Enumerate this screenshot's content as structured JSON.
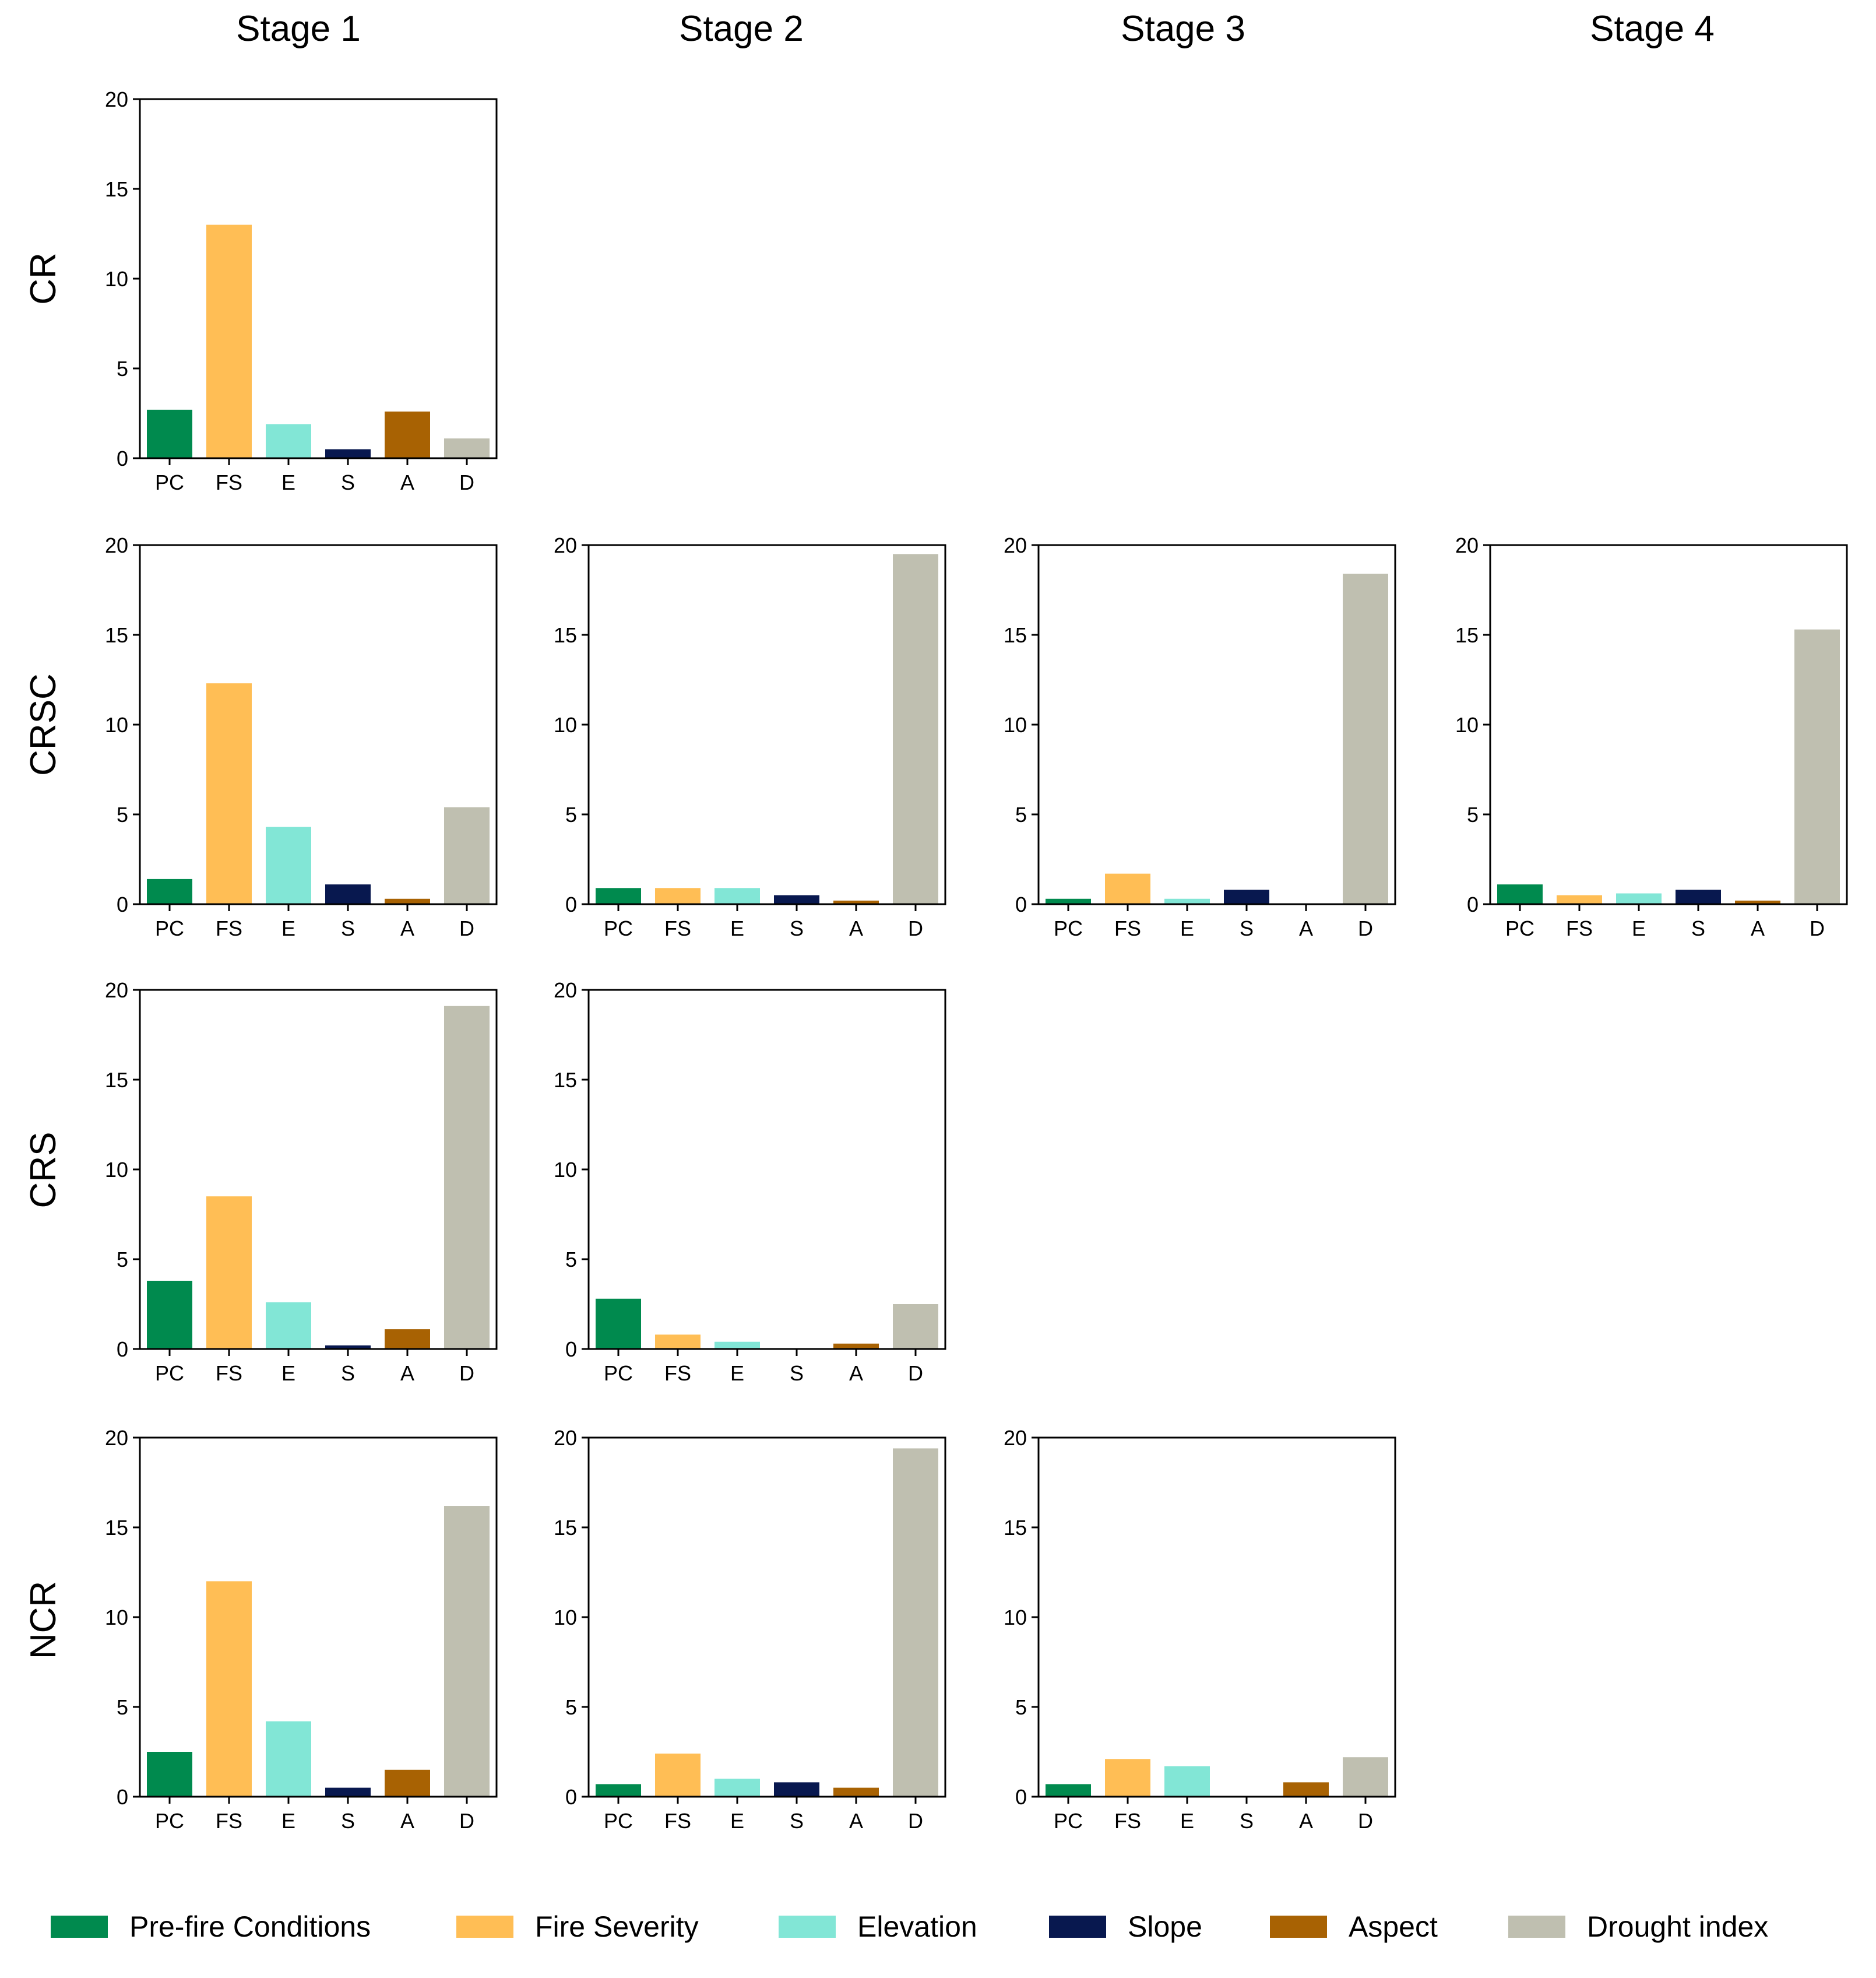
{
  "stages": [
    "Stage 1",
    "Stage 2",
    "Stage 3",
    "Stage 4"
  ],
  "rows": [
    "CR",
    "CRSC",
    "CRS",
    "NCR"
  ],
  "legend": [
    {
      "code": "PC",
      "label": "Pre-fire Conditions",
      "color": "#008a4e"
    },
    {
      "code": "FS",
      "label": "Fire Severity",
      "color": "#ffbe55"
    },
    {
      "code": "E",
      "label": "Elevation",
      "color": "#82e6d6"
    },
    {
      "code": "S",
      "label": "Slope",
      "color": "#08184f"
    },
    {
      "code": "A",
      "label": "Aspect",
      "color": "#a86203"
    },
    {
      "code": "D",
      "label": "Drought index",
      "color": "#bfbfb0"
    }
  ],
  "chart_data": {
    "type": "bar",
    "categories": [
      "PC",
      "FS",
      "E",
      "S",
      "A",
      "D"
    ],
    "ylim": [
      0,
      20
    ],
    "yticks": [
      0,
      5,
      10,
      15,
      20
    ],
    "panels": [
      {
        "row": "CR",
        "stage": "Stage 1",
        "values": [
          2.7,
          13.0,
          1.9,
          0.5,
          2.6,
          1.1
        ]
      },
      {
        "row": "CRSC",
        "stage": "Stage 1",
        "values": [
          1.4,
          12.3,
          4.3,
          1.1,
          0.3,
          5.4
        ]
      },
      {
        "row": "CRSC",
        "stage": "Stage 2",
        "values": [
          0.9,
          0.9,
          0.9,
          0.5,
          0.2,
          19.5
        ]
      },
      {
        "row": "CRSC",
        "stage": "Stage 3",
        "values": [
          0.3,
          1.7,
          0.3,
          0.8,
          0.0,
          18.4
        ]
      },
      {
        "row": "CRSC",
        "stage": "Stage 4",
        "values": [
          1.1,
          0.5,
          0.6,
          0.8,
          0.2,
          15.3
        ]
      },
      {
        "row": "CRS",
        "stage": "Stage 1",
        "values": [
          3.8,
          8.5,
          2.6,
          0.2,
          1.1,
          19.1
        ]
      },
      {
        "row": "CRS",
        "stage": "Stage 2",
        "values": [
          2.8,
          0.8,
          0.4,
          0.0,
          0.3,
          2.5
        ]
      },
      {
        "row": "NCR",
        "stage": "Stage 1",
        "values": [
          2.5,
          12.0,
          4.2,
          0.5,
          1.5,
          16.2
        ]
      },
      {
        "row": "NCR",
        "stage": "Stage 2",
        "values": [
          0.7,
          2.4,
          1.0,
          0.8,
          0.5,
          19.4
        ]
      },
      {
        "row": "NCR",
        "stage": "Stage 3",
        "values": [
          0.7,
          2.1,
          1.7,
          0.0,
          0.8,
          2.2
        ]
      }
    ]
  }
}
